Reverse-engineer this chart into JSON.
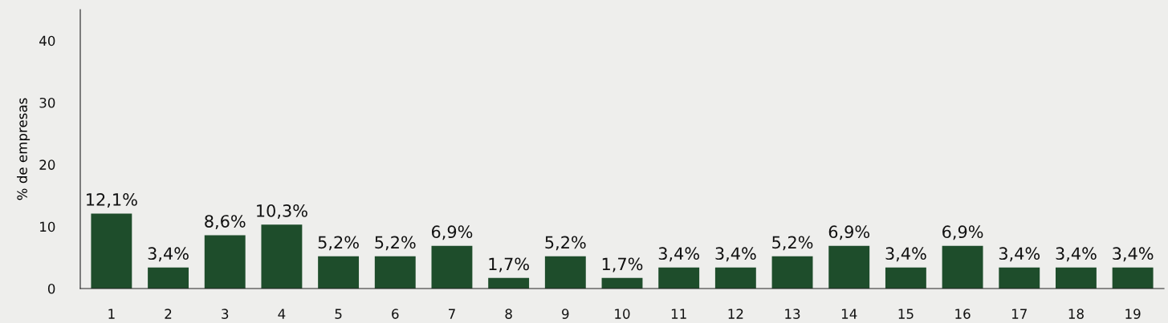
{
  "chart_data": {
    "type": "bar",
    "ylabel": "% de empresas",
    "categories": [
      "1",
      "2",
      "3",
      "4",
      "5",
      "6",
      "7",
      "8",
      "9",
      "10",
      "11",
      "12",
      "13",
      "14",
      "15",
      "16",
      "17",
      "18",
      "19"
    ],
    "values": [
      12.1,
      3.4,
      8.6,
      10.3,
      5.2,
      5.2,
      6.9,
      1.7,
      5.2,
      1.7,
      3.4,
      3.4,
      5.2,
      6.9,
      3.4,
      6.9,
      3.4,
      3.4,
      3.4
    ],
    "value_labels": [
      "12,1%",
      "3,4%",
      "8,6%",
      "10,3%",
      "5,2%",
      "5,2%",
      "6,9%",
      "1,7%",
      "5,2%",
      "1,7%",
      "3,4%",
      "3,4%",
      "5,2%",
      "6,9%",
      "3,4%",
      "6,9%",
      "3,4%",
      "3,4%",
      "3,4%"
    ],
    "color": "#1e4d2b",
    "ylim": [
      0,
      45
    ],
    "yticks": [
      0,
      10,
      20,
      30,
      40
    ],
    "grid": false,
    "legend": false
  }
}
